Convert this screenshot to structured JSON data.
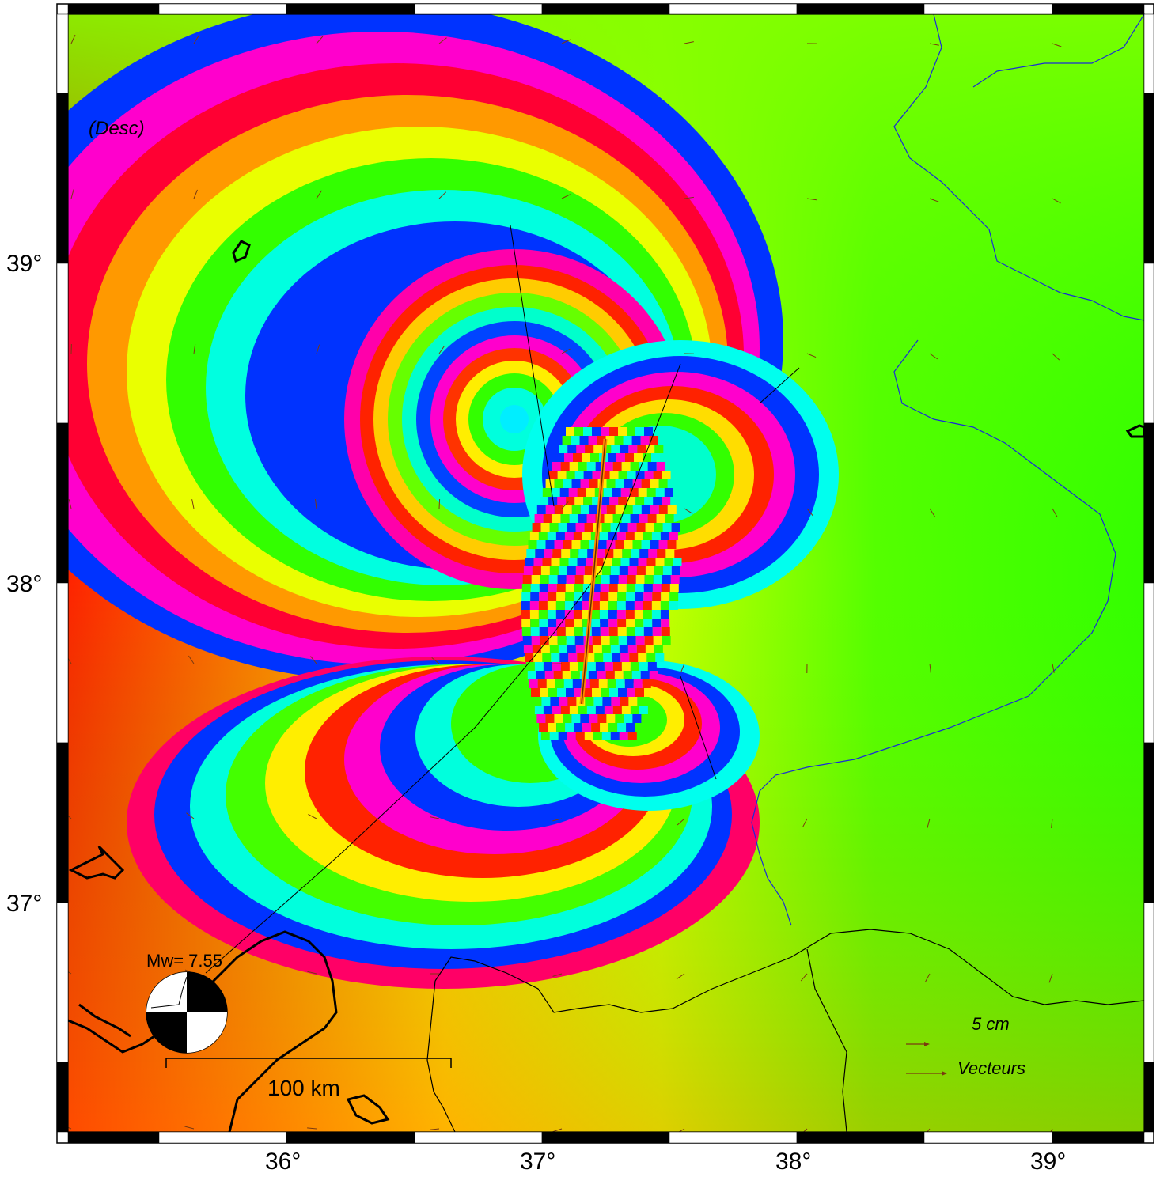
{
  "map": {
    "view_label": "(Desc)",
    "magnitude_label": "Mw= 7.55",
    "scale_bar_label": "100 km",
    "legend": {
      "scale_value": "5  cm",
      "vectors_label": "Vecteurs",
      "arrow_color": "#7a3a10",
      "text_color": "#7a0000"
    },
    "lon_ticks": [
      "36°",
      "37°",
      "38°",
      "39°"
    ],
    "lat_ticks": [
      "39°",
      "38°",
      "37°"
    ],
    "colors": {
      "coast": "#000000",
      "river": "#1a2bd6",
      "border": "#000000",
      "fault": "#ff8a00"
    }
  }
}
